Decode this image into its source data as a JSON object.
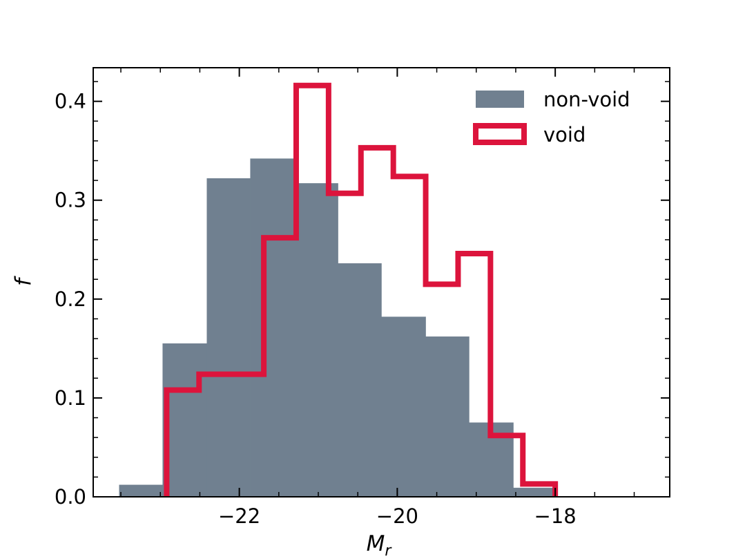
{
  "chart_data": {
    "type": "histogram",
    "xlabel": "M",
    "xlabel_sub": "r",
    "ylabel": "f",
    "xlim": [
      -23.85,
      -16.55
    ],
    "ylim": [
      0,
      0.434
    ],
    "xticks": [
      -22,
      -20,
      -18
    ],
    "xtick_labels": [
      "−22",
      "−20",
      "−18"
    ],
    "yticks": [
      0.0,
      0.1,
      0.2,
      0.3,
      0.4
    ],
    "ytick_labels": [
      "0.0",
      "0.1",
      "0.2",
      "0.3",
      "0.4"
    ],
    "grid": false,
    "legend_position": "upper right",
    "series": [
      {
        "name": "non-void",
        "style": "filled",
        "color": "#708090",
        "bin_edges": [
          -23.52,
          -22.97,
          -22.41,
          -21.86,
          -21.3,
          -20.75,
          -20.2,
          -19.64,
          -19.09,
          -18.53,
          -17.98
        ],
        "values": [
          0.012,
          0.155,
          0.322,
          0.342,
          0.317,
          0.236,
          0.182,
          0.162,
          0.075,
          0.009
        ]
      },
      {
        "name": "void",
        "style": "step",
        "color": "#DC143C",
        "bin_edges": [
          -22.92,
          -22.51,
          -22.1,
          -21.69,
          -21.28,
          -20.87,
          -20.46,
          -20.05,
          -19.64,
          -19.23,
          -18.82,
          -18.41,
          -18.0
        ],
        "values": [
          0.108,
          0.124,
          0.124,
          0.262,
          0.416,
          0.307,
          0.353,
          0.324,
          0.215,
          0.246,
          0.062,
          0.013
        ]
      }
    ]
  }
}
